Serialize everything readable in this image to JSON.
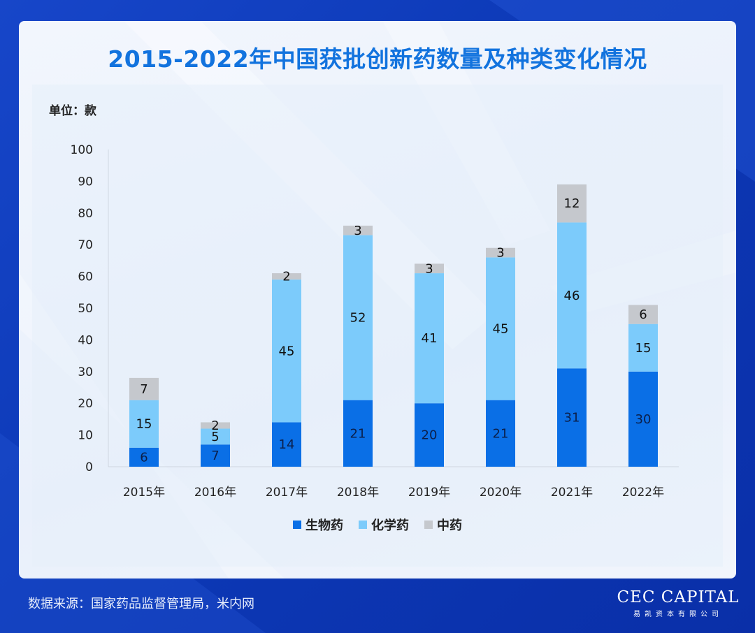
{
  "title": "2015-2022年中国获批创新药数量及种类变化情况",
  "unit_label": "单位：款",
  "source": "数据来源：国家药品监督管理局，米内网",
  "logo": {
    "main": "CEC CAPITAL",
    "sub": "易凯资本有限公司"
  },
  "colors": {
    "bio": "#0a6fe6",
    "chem": "#7ccbfb",
    "tcm": "#c5c8cd",
    "title": "#1273de"
  },
  "chart_data": {
    "type": "bar",
    "stacked": true,
    "categories": [
      "2015年",
      "2016年",
      "2017年",
      "2018年",
      "2019年",
      "2020年",
      "2021年",
      "2022年"
    ],
    "series": [
      {
        "name": "生物药",
        "values": [
          6,
          7,
          14,
          21,
          20,
          21,
          31,
          30
        ]
      },
      {
        "name": "化学药",
        "values": [
          15,
          5,
          45,
          52,
          41,
          45,
          46,
          15
        ]
      },
      {
        "name": "中药",
        "values": [
          7,
          2,
          2,
          3,
          3,
          3,
          12,
          6
        ]
      }
    ],
    "yticks": [
      0,
      10,
      20,
      30,
      40,
      50,
      60,
      70,
      80,
      90,
      100
    ],
    "ylim": [
      0,
      100
    ],
    "legend_position": "bottom"
  }
}
